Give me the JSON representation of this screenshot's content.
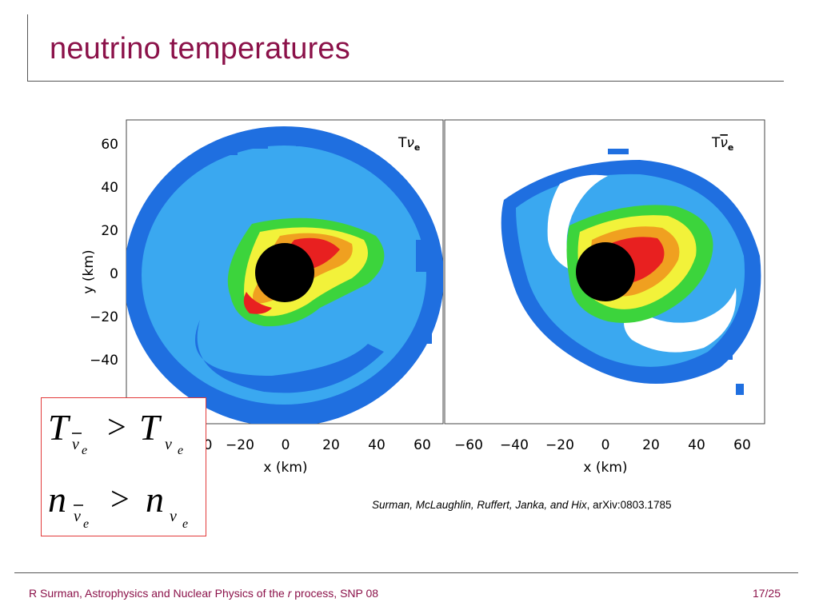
{
  "slide": {
    "title": "neutrino temperatures"
  },
  "figure": {
    "left_panel_label": "T",
    "left_panel_sub": "ν",
    "left_panel_subsub": "e",
    "right_panel_label": "T",
    "right_panel_sub": "ν",
    "right_panel_subsub": "e",
    "ylabel": "y (km)",
    "xlabel": "x (km)",
    "y_ticks": [
      "60",
      "40",
      "20",
      "0",
      "−20",
      "−40"
    ],
    "left_x_ticks": [
      "0",
      "−20",
      "0",
      "20",
      "40",
      "60"
    ],
    "right_x_ticks": [
      "−60",
      "−40",
      "−20",
      "0",
      "20",
      "40",
      "60"
    ]
  },
  "equations": {
    "line1_lhs": "T",
    "line1_rhs": "T",
    "line2_lhs": "n",
    "line2_rhs": "n",
    "op": ">",
    "nu": "v",
    "e": "e"
  },
  "citation": {
    "authors": "Surman, McLaughlin, Ruffert, Janka, and Hix",
    "ref": ", arXiv:0803.1785"
  },
  "footer": {
    "left_a": "R Surman, Astrophysics and Nuclear Physics of the ",
    "left_it": "r",
    "left_b": " process, SNP 08",
    "page": "17/25"
  },
  "colors": {
    "title": "#8b1149",
    "blue_outer": "#1f6fe0",
    "cyan": "#3aa8f0",
    "green": "#3cd43c",
    "yellow": "#f2f23a",
    "orange": "#f0a020",
    "red": "#e82020",
    "box_border": "#e23a3a"
  }
}
